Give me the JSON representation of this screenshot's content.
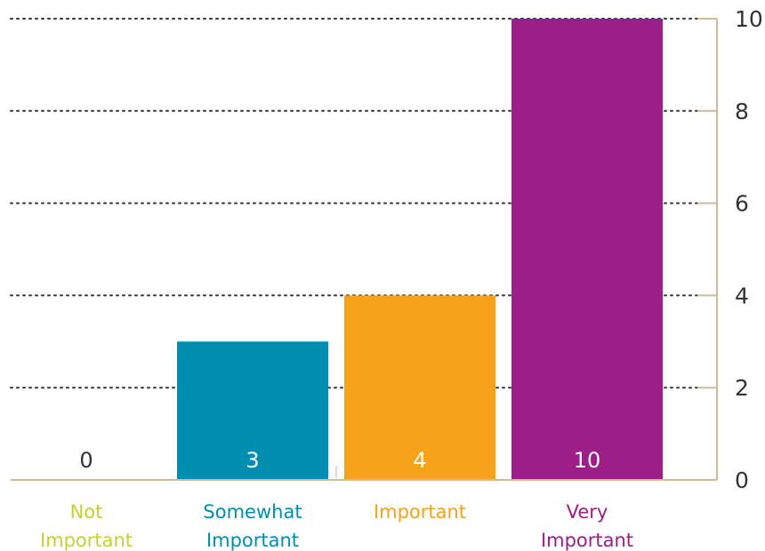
{
  "chart_data": {
    "type": "bar",
    "title": "",
    "xlabel": "",
    "ylabel": "",
    "categories": [
      {
        "lines": [
          "Not",
          "Important"
        ],
        "value": 0,
        "value_label": "0",
        "color": "#c3d232",
        "label_color": "#c3d232",
        "value_label_color": "#333333"
      },
      {
        "lines": [
          "Somewhat",
          "Important"
        ],
        "value": 3,
        "value_label": "3",
        "color": "#008eb0",
        "label_color": "#008eb0",
        "value_label_color": "#ffffff"
      },
      {
        "lines": [
          "Important"
        ],
        "value": 4,
        "value_label": "4",
        "color": "#f6a21b",
        "label_color": "#f6a21b",
        "value_label_color": "#ffffff"
      },
      {
        "lines": [
          "Very",
          "Important"
        ],
        "value": 10,
        "value_label": "10",
        "color": "#9b1f87",
        "label_color": "#9b1f87",
        "value_label_color": "#ffffff"
      }
    ],
    "ylim": [
      0,
      10
    ],
    "yticks": [
      {
        "value": 0,
        "label": "0"
      },
      {
        "value": 2,
        "label": "2"
      },
      {
        "value": 4,
        "label": "4"
      },
      {
        "value": 6,
        "label": "6"
      },
      {
        "value": 8,
        "label": "8"
      },
      {
        "value": 10,
        "label": "10"
      }
    ],
    "axis_position": "right",
    "grid": true,
    "grid_style": "dotted",
    "axis_color": "#d2b99a",
    "grid_color": "#333333"
  }
}
